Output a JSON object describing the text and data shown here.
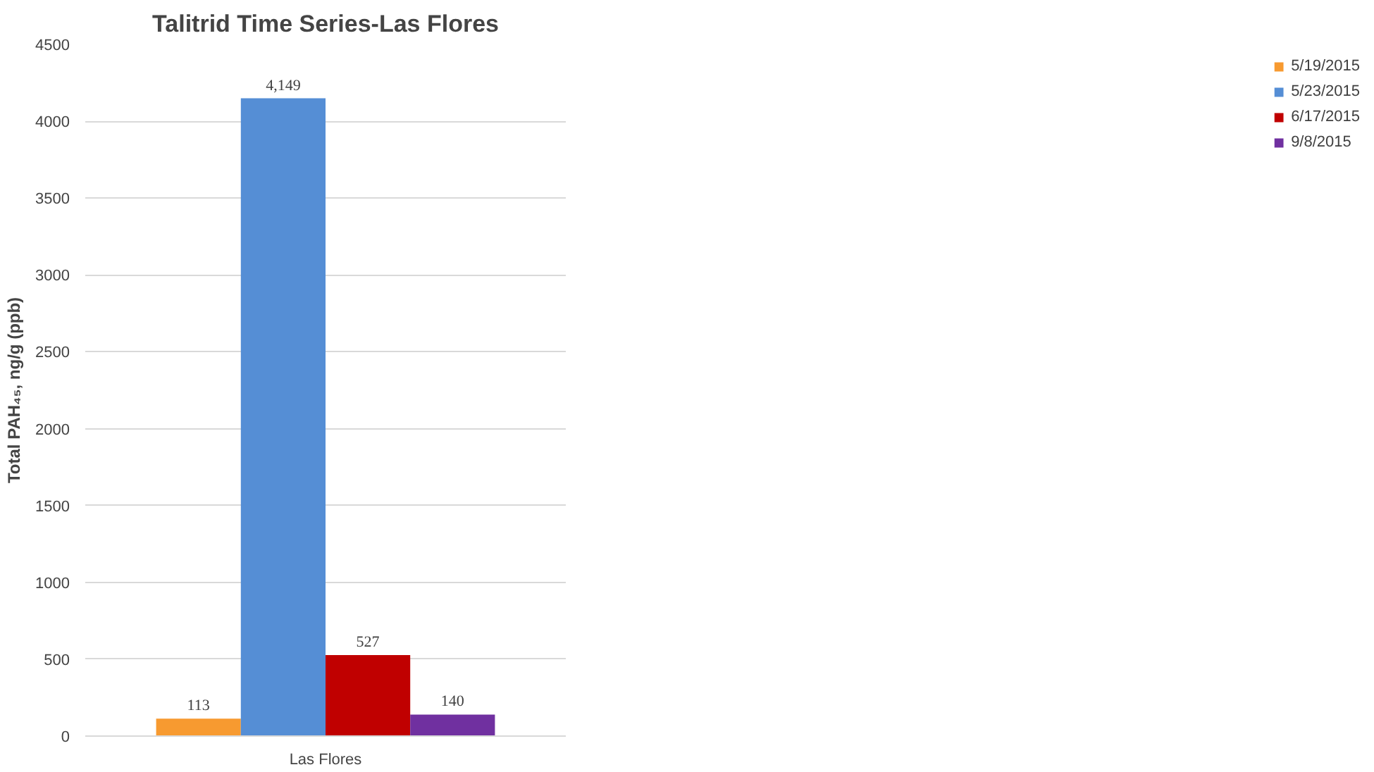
{
  "chart_data": {
    "type": "bar",
    "title": "Talitrid Time Series-Las Flores",
    "ylabel": "Total PAH₄₅, ng/g (ppb)",
    "categories": [
      "Las Flores"
    ],
    "series": [
      {
        "name": "5/19/2015",
        "color": "#f79a30",
        "values": [
          113
        ],
        "value_labels": [
          "113"
        ]
      },
      {
        "name": "5/23/2015",
        "color": "#558ed5",
        "values": [
          4149
        ],
        "value_labels": [
          "4,149"
        ]
      },
      {
        "name": "6/17/2015",
        "color": "#c00000",
        "values": [
          527
        ],
        "value_labels": [
          "527"
        ]
      },
      {
        "name": "9/8/2015",
        "color": "#7030a0",
        "values": [
          140
        ],
        "value_labels": [
          "140"
        ]
      }
    ],
    "ylim": [
      0,
      4500
    ],
    "yticks": [
      0,
      500,
      1000,
      1500,
      2000,
      2500,
      3000,
      3500,
      4000,
      4500
    ],
    "grid": "y",
    "legend": "right"
  }
}
